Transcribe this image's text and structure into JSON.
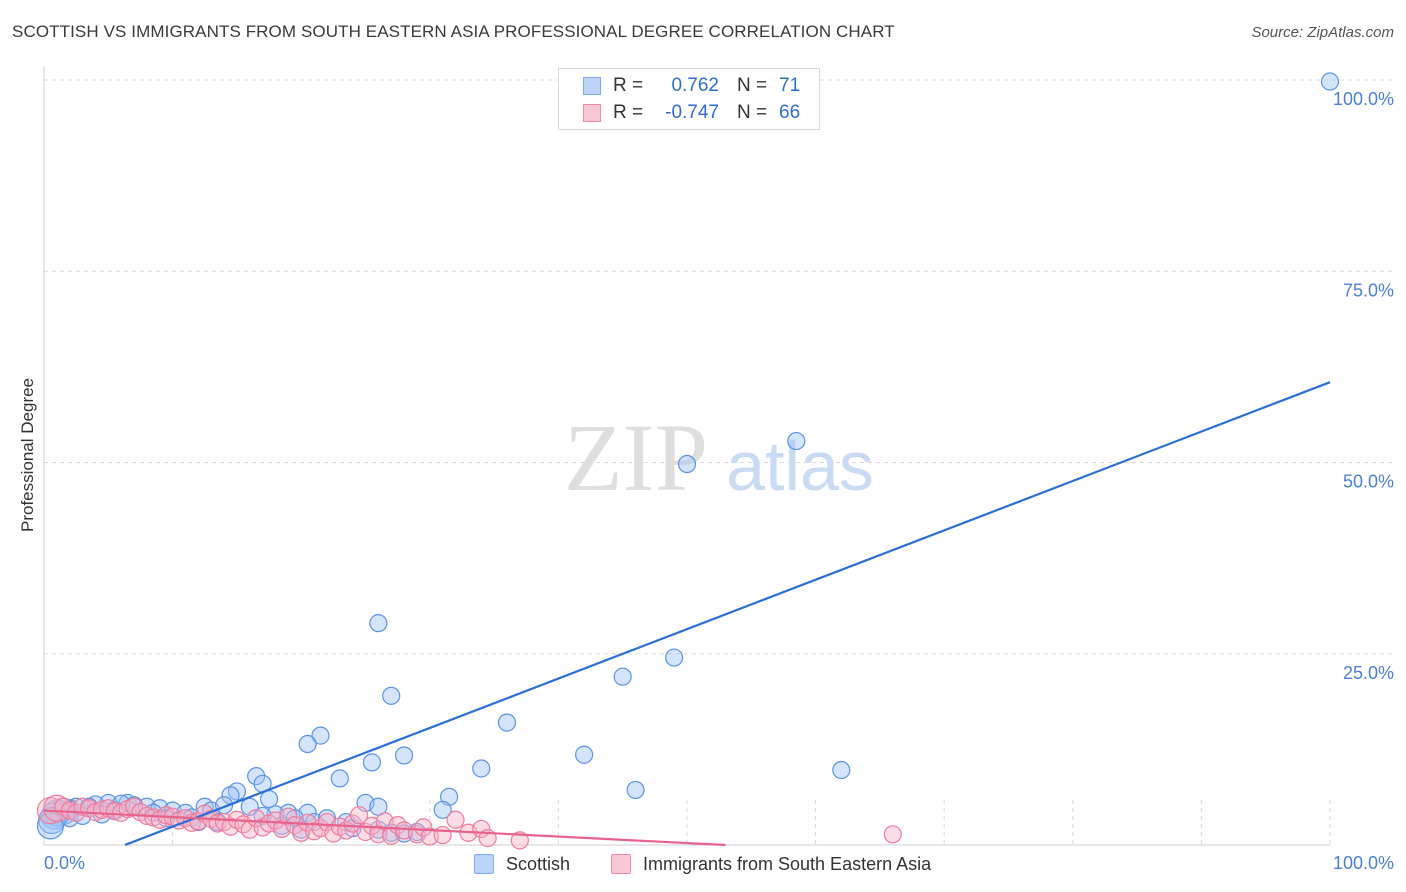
{
  "header": {
    "title": "SCOTTISH VS IMMIGRANTS FROM SOUTH EASTERN ASIA PROFESSIONAL DEGREE CORRELATION CHART",
    "source": "Source: ZipAtlas.com"
  },
  "watermark": {
    "zip": "ZIP",
    "atlas": "atlas"
  },
  "legend": {
    "rows": [
      {
        "r_label": "R =",
        "r_value": "0.762",
        "n_label": "N =",
        "n_value": "71",
        "color": "#7aaaf0",
        "fill": "#bcd4f8"
      },
      {
        "r_label": "R =",
        "r_value": "-0.747",
        "n_label": "N =",
        "n_value": "66",
        "color": "#f08aa8",
        "fill": "#f9c6d4"
      }
    ]
  },
  "bottom_legend": {
    "items": [
      {
        "label": "Scottish",
        "color": "#7aaaf0",
        "fill": "#bcd4f8"
      },
      {
        "label": "Immigrants from South Eastern Asia",
        "color": "#f08aa8",
        "fill": "#f9c6d4"
      }
    ]
  },
  "chart_data": {
    "type": "scatter",
    "title": "SCOTTISH VS IMMIGRANTS FROM SOUTH EASTERN ASIA PROFESSIONAL DEGREE CORRELATION CHART",
    "xlabel": "",
    "ylabel": "Professional Degree",
    "xlim": [
      0,
      100
    ],
    "ylim": [
      0,
      100
    ],
    "x_tick_labels": [
      {
        "value": 0,
        "label": "0.0%"
      },
      {
        "value": 100,
        "label": "100.0%"
      }
    ],
    "y_tick_labels": [
      {
        "value": 25,
        "label": "25.0%"
      },
      {
        "value": 50,
        "label": "50.0%"
      },
      {
        "value": 75,
        "label": "75.0%"
      },
      {
        "value": 100,
        "label": "100.0%"
      }
    ],
    "grid": true,
    "series": [
      {
        "name": "Scottish",
        "color": "#5b93e6",
        "fill": "rgba(160,196,245,0.45)",
        "trend": {
          "x": [
            6.3,
            100
          ],
          "y": [
            0,
            60.5
          ],
          "color": "#2b6fd6"
        },
        "points": [
          [
            100,
            99.8
          ],
          [
            58.5,
            52.8
          ],
          [
            50,
            49.8
          ],
          [
            26,
            29
          ],
          [
            49,
            24.5
          ],
          [
            45,
            22
          ],
          [
            27,
            19.5
          ],
          [
            36,
            16
          ],
          [
            21.5,
            14.3
          ],
          [
            20.5,
            13.2
          ],
          [
            42,
            11.8
          ],
          [
            28,
            11.7
          ],
          [
            25.5,
            10.8
          ],
          [
            34,
            10
          ],
          [
            62,
            9.8
          ],
          [
            23,
            8.7
          ],
          [
            16.5,
            9
          ],
          [
            17,
            8
          ],
          [
            15,
            7
          ],
          [
            14.5,
            6.5
          ],
          [
            17.5,
            6
          ],
          [
            31.5,
            6.3
          ],
          [
            46,
            7.2
          ],
          [
            25,
            5.5
          ],
          [
            26,
            5
          ],
          [
            31,
            4.6
          ],
          [
            16,
            5
          ],
          [
            12.5,
            5
          ],
          [
            13,
            4.5
          ],
          [
            20.5,
            4.2
          ],
          [
            19,
            4.2
          ],
          [
            18,
            4
          ],
          [
            17,
            3.8
          ],
          [
            19.5,
            3.5
          ],
          [
            6.5,
            5.5
          ],
          [
            5,
            5.5
          ],
          [
            4,
            5.3
          ],
          [
            3.5,
            5
          ],
          [
            2.5,
            5
          ],
          [
            2,
            4.8
          ],
          [
            1.5,
            4.4
          ],
          [
            1,
            4.2
          ],
          [
            0.8,
            3.8
          ],
          [
            0.6,
            3.2
          ],
          [
            0.5,
            2.5
          ],
          [
            7,
            5.2
          ],
          [
            8,
            5
          ],
          [
            9,
            4.8
          ],
          [
            10,
            4.5
          ],
          [
            11,
            4.2
          ],
          [
            11.5,
            3.6
          ],
          [
            12,
            3
          ],
          [
            9.5,
            3.5
          ],
          [
            8.5,
            4.2
          ],
          [
            2,
            3.5
          ],
          [
            3,
            3.8
          ],
          [
            4.5,
            4
          ],
          [
            5.5,
            4.6
          ],
          [
            6,
            5.4
          ],
          [
            14,
            5.2
          ],
          [
            13.5,
            3
          ],
          [
            18.5,
            2.5
          ],
          [
            20,
            2
          ],
          [
            21,
            3
          ],
          [
            22,
            3.5
          ],
          [
            23.5,
            3
          ],
          [
            24,
            2.2
          ],
          [
            26,
            2
          ],
          [
            27,
            1.6
          ],
          [
            28,
            1.5
          ],
          [
            29,
            1.7
          ]
        ]
      },
      {
        "name": "Immigrants from South Eastern Asia",
        "color": "#ef7b9e",
        "fill": "rgba(246,180,200,0.45)",
        "trend": {
          "x": [
            0,
            53
          ],
          "y": [
            4.5,
            0
          ],
          "color": "#e8638b"
        },
        "points": [
          [
            0.5,
            4.5
          ],
          [
            1,
            4.8
          ],
          [
            1.5,
            5
          ],
          [
            2,
            4.5
          ],
          [
            2.5,
            4.2
          ],
          [
            3,
            5
          ],
          [
            3.5,
            4.8
          ],
          [
            4,
            4.3
          ],
          [
            4.5,
            4.6
          ],
          [
            5,
            4.8
          ],
          [
            5.5,
            4.4
          ],
          [
            6,
            4.2
          ],
          [
            6.5,
            4.7
          ],
          [
            7,
            5
          ],
          [
            7.5,
            4.3
          ],
          [
            8,
            3.8
          ],
          [
            8.5,
            3.6
          ],
          [
            9,
            3.3
          ],
          [
            9.5,
            3.9
          ],
          [
            10,
            3.7
          ],
          [
            10.5,
            3.2
          ],
          [
            11,
            3.5
          ],
          [
            11.5,
            2.9
          ],
          [
            12,
            3.1
          ],
          [
            12.5,
            4.1
          ],
          [
            13,
            3.4
          ],
          [
            13.5,
            2.8
          ],
          [
            14,
            3
          ],
          [
            14.5,
            2.4
          ],
          [
            15,
            3.3
          ],
          [
            15.5,
            2.7
          ],
          [
            16,
            2
          ],
          [
            16.5,
            3.5
          ],
          [
            17,
            2.3
          ],
          [
            17.5,
            2.8
          ],
          [
            18,
            3.2
          ],
          [
            18.5,
            2.1
          ],
          [
            19,
            3.7
          ],
          [
            19.5,
            2.6
          ],
          [
            20,
            1.6
          ],
          [
            20.5,
            2.9
          ],
          [
            21,
            1.8
          ],
          [
            21.5,
            2.2
          ],
          [
            22,
            3
          ],
          [
            22.5,
            1.5
          ],
          [
            23,
            2.4
          ],
          [
            23.5,
            1.9
          ],
          [
            24,
            2.8
          ],
          [
            24.5,
            3.9
          ],
          [
            25,
            1.7
          ],
          [
            25.5,
            2.5
          ],
          [
            26,
            1.4
          ],
          [
            26.5,
            3.1
          ],
          [
            27,
            1.2
          ],
          [
            27.5,
            2.6
          ],
          [
            28,
            1.9
          ],
          [
            29,
            1.4
          ],
          [
            29.5,
            2.3
          ],
          [
            30,
            1.1
          ],
          [
            31,
            1.3
          ],
          [
            32,
            3.3
          ],
          [
            33,
            1.6
          ],
          [
            34,
            2.1
          ],
          [
            34.5,
            0.9
          ],
          [
            37,
            0.6
          ],
          [
            66,
            1.4
          ]
        ]
      }
    ]
  }
}
